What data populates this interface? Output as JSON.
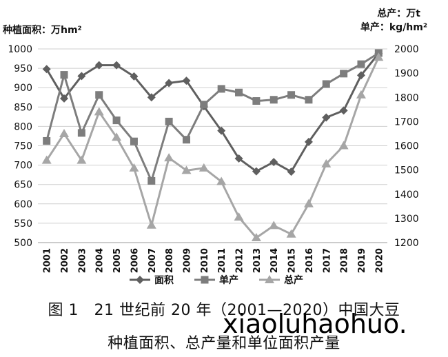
{
  "chart_data": {
    "type": "line",
    "title": "",
    "left_axis_label": "种植面积：万hm²",
    "right_axis_label_line1": "总产：万t",
    "right_axis_label_line2": "单产：kg/hm²",
    "left_ylim": [
      500,
      1000
    ],
    "right_ylim": [
      1200,
      2000
    ],
    "left_ticks": [
      "500",
      "550",
      "600",
      "650",
      "700",
      "750",
      "800",
      "850",
      "900",
      "950",
      "1000"
    ],
    "right_ticks": [
      "1200",
      "1300",
      "1400",
      "1500",
      "1600",
      "1700",
      "1800",
      "1900",
      "2000"
    ],
    "categories": [
      "2001",
      "2002",
      "2003",
      "2004",
      "2005",
      "2006",
      "2007",
      "2008",
      "2009",
      "2010",
      "2011",
      "2012",
      "2013",
      "2014",
      "2015",
      "2016",
      "2017",
      "2018",
      "2019",
      "2020"
    ],
    "grid": true,
    "legend_placement": "bottom",
    "series": [
      {
        "name": "面积",
        "axis": "left",
        "marker": "diamond",
        "color": "#5f5f5f",
        "values": [
          948,
          872,
          930,
          958,
          958,
          929,
          875,
          912,
          918,
          852,
          789,
          717,
          684,
          708,
          683,
          760,
          823,
          841,
          932,
          988
        ]
      },
      {
        "name": "单产",
        "axis": "right",
        "marker": "square",
        "color": "#7d7d7d",
        "values": [
          1620,
          1893,
          1653,
          1810,
          1705,
          1618,
          1455,
          1700,
          1625,
          1770,
          1835,
          1820,
          1785,
          1790,
          1810,
          1790,
          1855,
          1898,
          1937,
          1983
        ]
      },
      {
        "name": "总产",
        "axis": "right",
        "marker": "triangle",
        "color": "#a6a6a6",
        "values": [
          1540,
          1650,
          1540,
          1740,
          1635,
          1508,
          1272,
          1550,
          1498,
          1508,
          1452,
          1305,
          1220,
          1270,
          1235,
          1360,
          1525,
          1600,
          1810,
          1965
        ]
      }
    ]
  },
  "caption_line1": "图 1　21 世纪前 20 年（2001—2020）中国大豆",
  "caption_line2": "种植面积、总产量和单位面积产量",
  "watermark": "xiaoluhaohuo."
}
